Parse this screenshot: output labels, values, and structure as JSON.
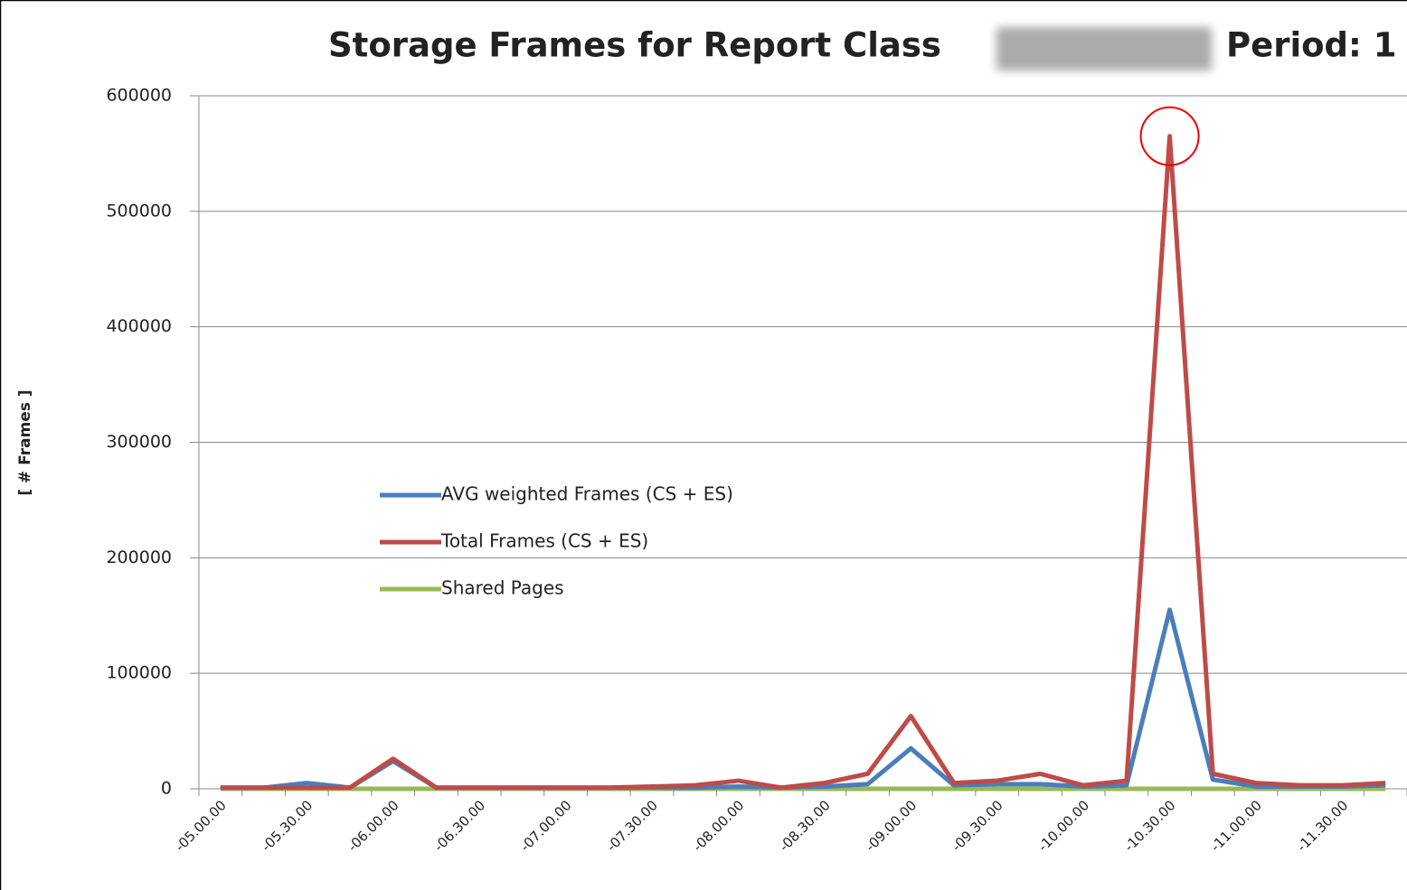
{
  "chart_data": {
    "type": "line",
    "title": "Storage Frames for Report Class",
    "title_suffix": "Period: 1",
    "y_label": "[ # Frames ]",
    "categories": [
      "-05.00.00",
      null,
      "-05.30.00",
      null,
      "-06.00.00",
      null,
      "-06.30.00",
      null,
      "-07.00.00",
      null,
      "-07.30.00",
      null,
      "-08.00.00",
      null,
      "-08.30.00",
      null,
      "-09.00.00",
      null,
      "-09.30.00",
      null,
      "-10.00.00",
      null,
      "-10.30.00",
      null,
      "-11.00.00",
      null,
      "-11.30.00",
      null
    ],
    "series": [
      {
        "name": "AVG weighted Frames (CS + ES)",
        "color": "#4a7ebb",
        "values": [
          1000,
          1000,
          5000,
          1000,
          24000,
          1000,
          1000,
          1000,
          1000,
          1000,
          1000,
          1000,
          2000,
          1000,
          2000,
          4000,
          35000,
          3000,
          4000,
          4000,
          2000,
          3000,
          155000,
          8000,
          2000,
          2000,
          2000,
          3000
        ]
      },
      {
        "name": "Total Frames (CS + ES)",
        "color": "#be4b48",
        "values": [
          1000,
          1000,
          1000,
          1000,
          26000,
          1000,
          1000,
          1000,
          1000,
          1000,
          2000,
          3000,
          7000,
          1000,
          5000,
          13000,
          63000,
          5000,
          7000,
          13000,
          3000,
          7000,
          565000,
          13000,
          5000,
          3000,
          3000,
          5000
        ]
      },
      {
        "name": "Shared Pages",
        "color": "#98b954",
        "values": [
          0,
          0,
          0,
          0,
          0,
          0,
          0,
          0,
          0,
          0,
          0,
          0,
          0,
          0,
          0,
          0,
          0,
          0,
          0,
          0,
          0,
          0,
          0,
          0,
          0,
          0,
          0,
          0
        ]
      }
    ],
    "ylim": [
      0,
      600000
    ],
    "yticks": [
      0,
      100000,
      200000,
      300000,
      400000,
      500000,
      600000
    ],
    "grid": true
  }
}
